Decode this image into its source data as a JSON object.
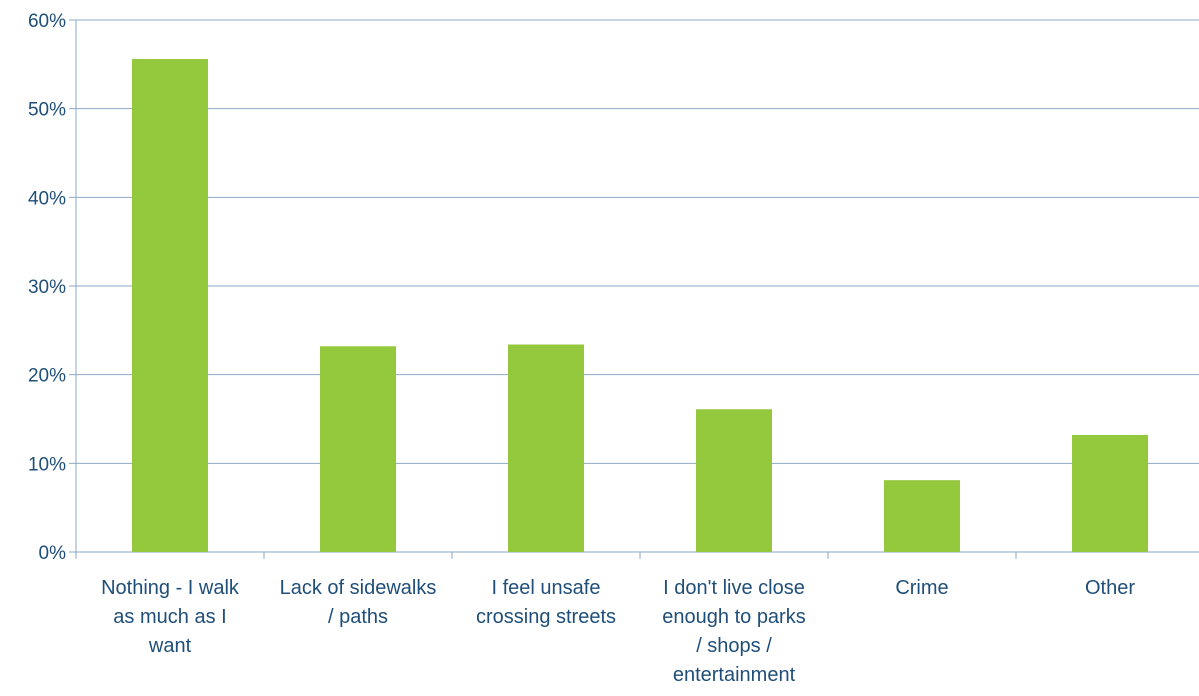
{
  "chart_data": {
    "type": "bar",
    "title": "",
    "xlabel": "",
    "ylabel": "",
    "categories": [
      [
        "Nothing - I walk",
        "as much as I",
        "want"
      ],
      [
        "Lack of sidewalks",
        "/ paths"
      ],
      [
        "I feel unsafe",
        "crossing streets"
      ],
      [
        "I don't live close",
        "enough to parks",
        "/ shops /",
        "entertainment"
      ],
      [
        "Crime"
      ],
      [
        "Other"
      ]
    ],
    "values": [
      55.6,
      23.2,
      23.4,
      16.1,
      8.1,
      13.2
    ],
    "ylim": [
      0,
      60
    ],
    "y_ticks": [
      "0%",
      "10%",
      "20%",
      "30%",
      "40%",
      "50%",
      "60%"
    ],
    "grid": true,
    "legend": "none",
    "colors": {
      "bar": "#94c83d",
      "grid": "#8ea8c3",
      "axis": "#8ea8c3",
      "text": "#1f4e79"
    }
  }
}
